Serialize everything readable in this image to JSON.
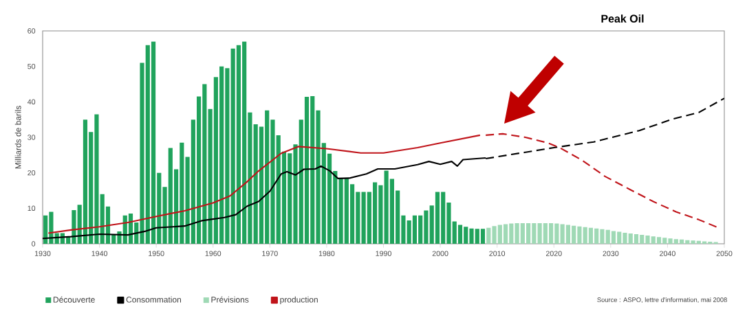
{
  "chart_data": {
    "type": "bar",
    "title": "Peak Oil",
    "ylabel": "Milliards de barils",
    "annotations": [
      "Source : ASPO, lettre d'information, mai 2008"
    ],
    "xlim": [
      1930,
      2050
    ],
    "xticks": [
      1930,
      1940,
      1950,
      1960,
      1970,
      1980,
      1990,
      2000,
      2010,
      2020,
      2030,
      2040,
      2050
    ],
    "ylim": [
      0,
      60
    ],
    "yticks": [
      0,
      10,
      20,
      30,
      40,
      50,
      60
    ],
    "legend": "bottom",
    "marker": "none",
    "series": [
      {
        "name": "Découverte",
        "color": "#20a35c",
        "x": [
          1930,
          1931,
          1932,
          1933,
          1934,
          1935,
          1936,
          1937,
          1938,
          1939,
          1940,
          1941,
          1942,
          1943,
          1944,
          1945,
          1946,
          1947,
          1948,
          1949,
          1950,
          1951,
          1952,
          1953,
          1954,
          1955,
          1956,
          1957,
          1958,
          1959,
          1960,
          1961,
          1962,
          1963,
          1964,
          1965,
          1966,
          1967,
          1968,
          1969,
          1970,
          1971,
          1972,
          1973,
          1974,
          1975,
          1976,
          1977,
          1978,
          1979,
          1980,
          1981,
          1982,
          1983,
          1984,
          1985,
          1986,
          1987,
          1988,
          1989,
          1990,
          1991,
          1992,
          1993,
          1994,
          1995,
          1996,
          1997,
          1998,
          1999,
          2000,
          2001,
          2002,
          2003,
          2004,
          2005,
          2006,
          2007
        ],
        "values": [
          8,
          9,
          3,
          3,
          2,
          9.5,
          11,
          35,
          31.5,
          36.5,
          14,
          10.5,
          2.5,
          3.5,
          8,
          8.5,
          6,
          51,
          56,
          57,
          20,
          16,
          27,
          21,
          28.5,
          24.5,
          35,
          41.5,
          45,
          38,
          47,
          50,
          49.5,
          55,
          56,
          57,
          37,
          33.7,
          33,
          37.6,
          35,
          30.6,
          26,
          25.5,
          28,
          35,
          41.4,
          41.6,
          37.6,
          28.4,
          25.4,
          20.5,
          18.4,
          18.4,
          16.8,
          14.6,
          14.6,
          14.6,
          17.3,
          16.5,
          20.6,
          18.3,
          15,
          8,
          6.6,
          8,
          8,
          9.4,
          10.8,
          14.6,
          14.6,
          11.6,
          6.3,
          5.3,
          4.8,
          4.3,
          4.2,
          4.2
        ]
      },
      {
        "name": "Consommation",
        "type": "line",
        "color": "#000000",
        "line_style": "solid",
        "x": [
          1930,
          1935,
          1940,
          1945,
          1948,
          1950,
          1955,
          1958,
          1962,
          1964,
          1966,
          1968,
          1970,
          1972,
          1973,
          1974.5,
          1976,
          1978,
          1979,
          1980.5,
          1982,
          1984,
          1987,
          1989,
          1992,
          1996,
          1998,
          2000,
          2002,
          2003,
          2004,
          2008
        ],
        "values": [
          1.5,
          2,
          2.7,
          2.5,
          3.5,
          4.5,
          5,
          6.5,
          7.4,
          8.2,
          10.6,
          11.9,
          14.8,
          19.7,
          20.3,
          19.4,
          21,
          21.1,
          21.9,
          20.6,
          18.4,
          18.5,
          19.7,
          21.1,
          21.1,
          22.3,
          23.2,
          22.4,
          23.2,
          21.9,
          23.7,
          24.2
        ]
      },
      {
        "name": "Prévisions",
        "color": "#9fd9b5",
        "x": [
          2008,
          2009,
          2010,
          2011,
          2012,
          2013,
          2014,
          2015,
          2016,
          2017,
          2018,
          2019,
          2020,
          2021,
          2022,
          2023,
          2024,
          2025,
          2026,
          2027,
          2028,
          2029,
          2030,
          2031,
          2032,
          2033,
          2034,
          2035,
          2036,
          2037,
          2038,
          2039,
          2040,
          2041,
          2042,
          2043,
          2044,
          2045,
          2046,
          2047,
          2048
        ],
        "values": [
          4.5,
          5,
          5.3,
          5.5,
          5.7,
          5.8,
          5.8,
          5.8,
          5.8,
          5.8,
          5.8,
          5.8,
          5.7,
          5.5,
          5.3,
          5.1,
          4.9,
          4.7,
          4.5,
          4.3,
          4.1,
          3.9,
          3.6,
          3.4,
          3.1,
          2.9,
          2.7,
          2.5,
          2.3,
          2.1,
          1.9,
          1.7,
          1.5,
          1.3,
          1.2,
          1,
          0.9,
          0.8,
          0.7,
          0.6,
          0.5
        ]
      },
      {
        "name": "production",
        "type": "line",
        "color": "#c0141a",
        "line_style": "solid",
        "x": [
          1931,
          1935,
          1940,
          1945,
          1950,
          1955,
          1960,
          1963,
          1966,
          1968,
          1972,
          1975,
          1980,
          1986,
          1990,
          1996,
          2000,
          2007
        ],
        "values": [
          3,
          3.9,
          4.8,
          6,
          7.7,
          9.3,
          11.5,
          13.5,
          17.5,
          20.5,
          25.5,
          27.4,
          26.8,
          25.6,
          25.6,
          27.1,
          28.4,
          30.6
        ]
      },
      {
        "type": "line",
        "color": "#000000",
        "line_style": "dashed",
        "x": [
          2008,
          2015,
          2020,
          2027,
          2035,
          2041,
          2045.5,
          2050
        ],
        "values": [
          24,
          25.8,
          27.1,
          28.7,
          31.9,
          35.2,
          37,
          41
        ]
      },
      {
        "type": "line",
        "color": "#c0141a",
        "line_style": "dashed",
        "x": [
          2008,
          2011,
          2015,
          2019,
          2021,
          2025,
          2029,
          2033.5,
          2037.5,
          2041.5,
          2045.5,
          2049
        ],
        "values": [
          30.6,
          31,
          30,
          28.4,
          27.1,
          23.5,
          19,
          15.2,
          11.9,
          9,
          6.8,
          4.5
        ]
      }
    ]
  }
}
